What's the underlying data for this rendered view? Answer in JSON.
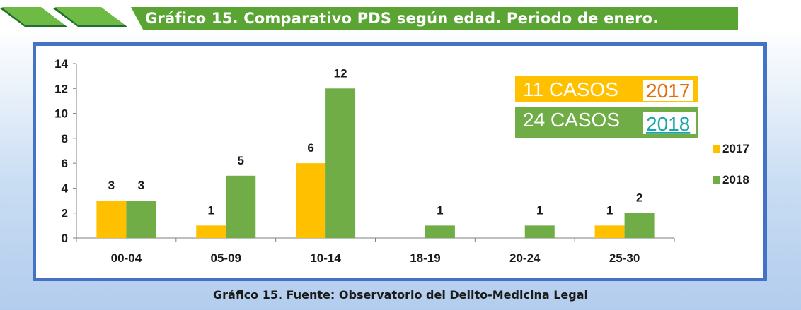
{
  "header": {
    "title": "Gráfico 15. Comparativo PDS según edad. Periodo de enero."
  },
  "caption": "Gráfico 15. Fuente: Observatorio del Delito-Medicina Legal",
  "colors": {
    "series_2017": "#ffc000",
    "series_2018": "#70ad47",
    "frame": "#4472c4",
    "title_bar": "#5aa434"
  },
  "annotations": {
    "box_2017": {
      "cases": "11 CASOS",
      "year": "2017"
    },
    "box_2018": {
      "cases": "24 CASOS",
      "year": "2018"
    }
  },
  "chart_data": {
    "type": "bar",
    "title": "",
    "xlabel": "",
    "ylabel": "",
    "ylim": [
      0,
      14
    ],
    "yticks": [
      0,
      2,
      4,
      6,
      8,
      10,
      12,
      14
    ],
    "categories": [
      "00-04",
      "05-09",
      "10-14",
      "18-19",
      "20-24",
      "25-30"
    ],
    "series": [
      {
        "name": "2017",
        "values": [
          3,
          1,
          6,
          0,
          0,
          1
        ]
      },
      {
        "name": "2018",
        "values": [
          3,
          5,
          12,
          1,
          1,
          2
        ]
      }
    ],
    "legend_position": "right",
    "grid": false
  }
}
